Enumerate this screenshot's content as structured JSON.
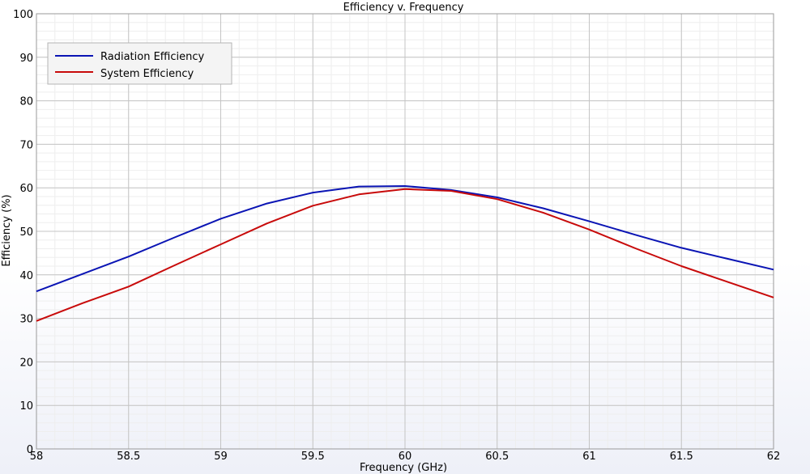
{
  "chart_data": {
    "type": "line",
    "title": "Efficiency v. Frequency",
    "xlabel": "Frequency (GHz)",
    "ylabel": "Efficiency (%)",
    "xlim": [
      58,
      62
    ],
    "ylim": [
      0,
      100
    ],
    "xticks": [
      58,
      58.5,
      59,
      59.5,
      60,
      60.5,
      61,
      61.5,
      62
    ],
    "xtick_labels": [
      "58",
      "58.5",
      "59",
      "59.5",
      "60",
      "60.5",
      "61",
      "61.5",
      "62"
    ],
    "yticks": [
      0,
      10,
      20,
      30,
      40,
      50,
      60,
      70,
      80,
      90,
      100
    ],
    "ytick_labels": [
      "0",
      "10",
      "20",
      "30",
      "40",
      "50",
      "60",
      "70",
      "80",
      "90",
      "100"
    ],
    "grid": true,
    "legend_position": "top-left",
    "series": [
      {
        "name": "Radiation Efficiency",
        "color": "#0a14b4",
        "x": [
          58,
          58.25,
          58.5,
          58.75,
          59,
          59.25,
          59.5,
          59.75,
          60,
          60.25,
          60.5,
          60.75,
          61,
          61.25,
          61.5,
          61.75,
          62
        ],
        "y": [
          36.2,
          40.2,
          44.2,
          48.6,
          52.9,
          56.4,
          58.9,
          60.3,
          60.4,
          59.5,
          57.8,
          55.3,
          52.3,
          49.2,
          46.2,
          43.7,
          41.2
        ]
      },
      {
        "name": "System Efficiency",
        "color": "#c80a0a",
        "x": [
          58,
          58.25,
          58.5,
          58.75,
          59,
          59.25,
          59.5,
          59.75,
          60,
          60.25,
          60.5,
          60.75,
          61,
          61.25,
          61.5,
          61.75,
          62
        ],
        "y": [
          29.4,
          33.5,
          37.3,
          42.2,
          47.0,
          51.8,
          55.9,
          58.5,
          59.7,
          59.3,
          57.4,
          54.3,
          50.4,
          46.1,
          42.0,
          38.4,
          34.8
        ]
      }
    ]
  }
}
